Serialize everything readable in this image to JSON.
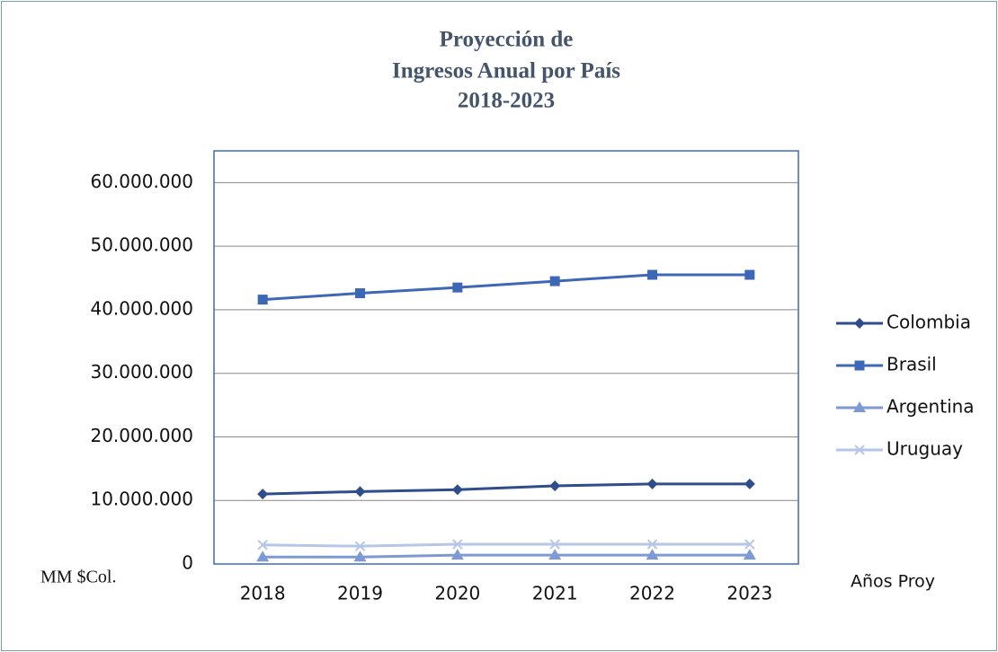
{
  "chart_data": {
    "type": "line",
    "title": [
      "Proyección de",
      "Ingresos Anual por País",
      "2018-2023"
    ],
    "y_label": "MM  $Col.",
    "x_label": "Años Proy",
    "categories": [
      "2018",
      "2019",
      "2020",
      "2021",
      "2022",
      "2023"
    ],
    "series": [
      {
        "name": "Colombia",
        "color": "#2e4d8a",
        "marker": "diamond",
        "values": [
          11000000,
          11400000,
          11700000,
          12300000,
          12600000,
          12600000
        ]
      },
      {
        "name": "Brasil",
        "color": "#3d68b8",
        "marker": "square",
        "values": [
          41600000,
          42600000,
          43500000,
          44500000,
          45500000,
          45500000
        ]
      },
      {
        "name": "Argentina",
        "color": "#7d9ad4",
        "marker": "triangle",
        "values": [
          1100000,
          1100000,
          1400000,
          1400000,
          1400000,
          1400000
        ]
      },
      {
        "name": "Uruguay",
        "color": "#b6c6e6",
        "marker": "x",
        "values": [
          3000000,
          2800000,
          3100000,
          3100000,
          3100000,
          3100000
        ]
      }
    ],
    "ylim": [
      0,
      65000000
    ],
    "yticks": [
      0,
      {
        "value": 10000000,
        "label": "10.000.000"
      },
      {
        "value": 20000000,
        "label": "20.000.000"
      },
      {
        "value": 30000000,
        "label": "30.000.000"
      },
      {
        "value": 40000000,
        "label": "40.000.000"
      },
      {
        "value": 50000000,
        "label": "50.000.000"
      },
      {
        "value": 60000000,
        "label": "60.000.000"
      }
    ],
    "grid": true,
    "legend": "right"
  }
}
